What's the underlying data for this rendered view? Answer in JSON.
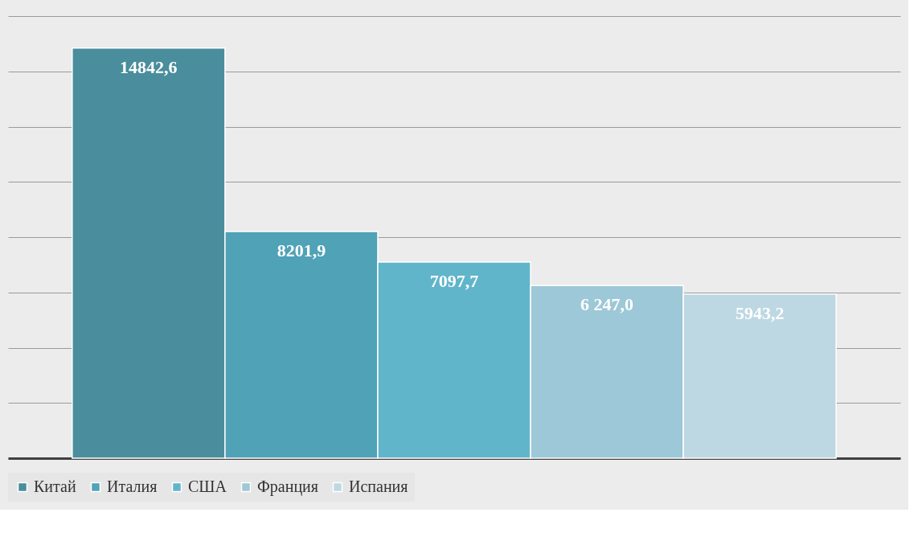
{
  "chart_data": {
    "type": "bar",
    "categories": [
      null
    ],
    "series": [
      {
        "name": "Китай",
        "color": "#4a8d9c",
        "values": [
          14842.6
        ],
        "value_labels": [
          "14842,6"
        ]
      },
      {
        "name": "Италия",
        "color": "#50a2b7",
        "values": [
          8201.9
        ],
        "value_labels": [
          "8201,9"
        ]
      },
      {
        "name": "США",
        "color": "#61b5ca",
        "values": [
          7097.7
        ],
        "value_labels": [
          "7097,7"
        ]
      },
      {
        "name": "Франция",
        "color": "#9dc8d7",
        "values": [
          6247.0
        ],
        "value_labels": [
          "6 247,0"
        ]
      },
      {
        "name": "Испания",
        "color": "#bdd8e2",
        "values": [
          5943.2
        ],
        "value_labels": [
          "5943,2"
        ]
      }
    ],
    "ylim": [
      0,
      16000
    ],
    "yticks": [
      {
        "value": 0,
        "label": null
      },
      {
        "value": 2000,
        "label": null
      },
      {
        "value": 4000,
        "label": null
      },
      {
        "value": 6000,
        "label": null
      },
      {
        "value": 8000,
        "label": null
      },
      {
        "value": 10000,
        "label": null
      },
      {
        "value": 12000,
        "label": null
      },
      {
        "value": 14000,
        "label": null
      },
      {
        "value": 16000,
        "label": null
      }
    ],
    "grid": "y",
    "legend": "bottom",
    "tick_labels": false
  }
}
